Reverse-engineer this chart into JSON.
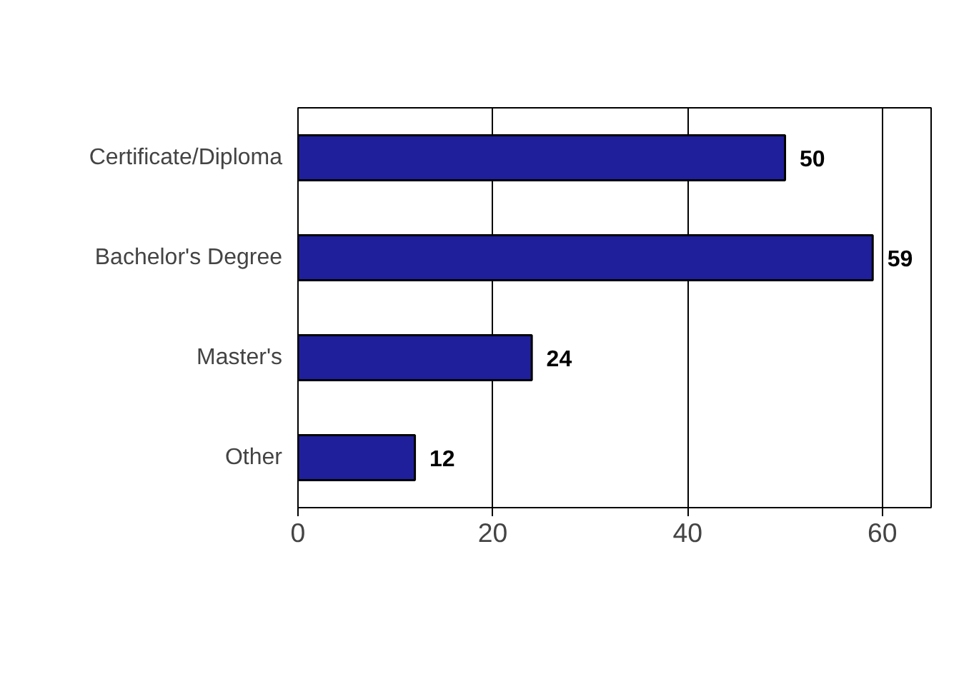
{
  "chart_data": {
    "type": "bar",
    "orientation": "horizontal",
    "categories": [
      "Certificate/Diploma",
      "Bachelor's Degree",
      "Master's",
      "Other"
    ],
    "values": [
      50,
      59,
      24,
      12
    ],
    "color": "#1f1f9c",
    "xlim": [
      0,
      65
    ],
    "xticks": [
      0,
      20,
      40,
      60
    ],
    "grid": "x",
    "data_labels": true
  }
}
